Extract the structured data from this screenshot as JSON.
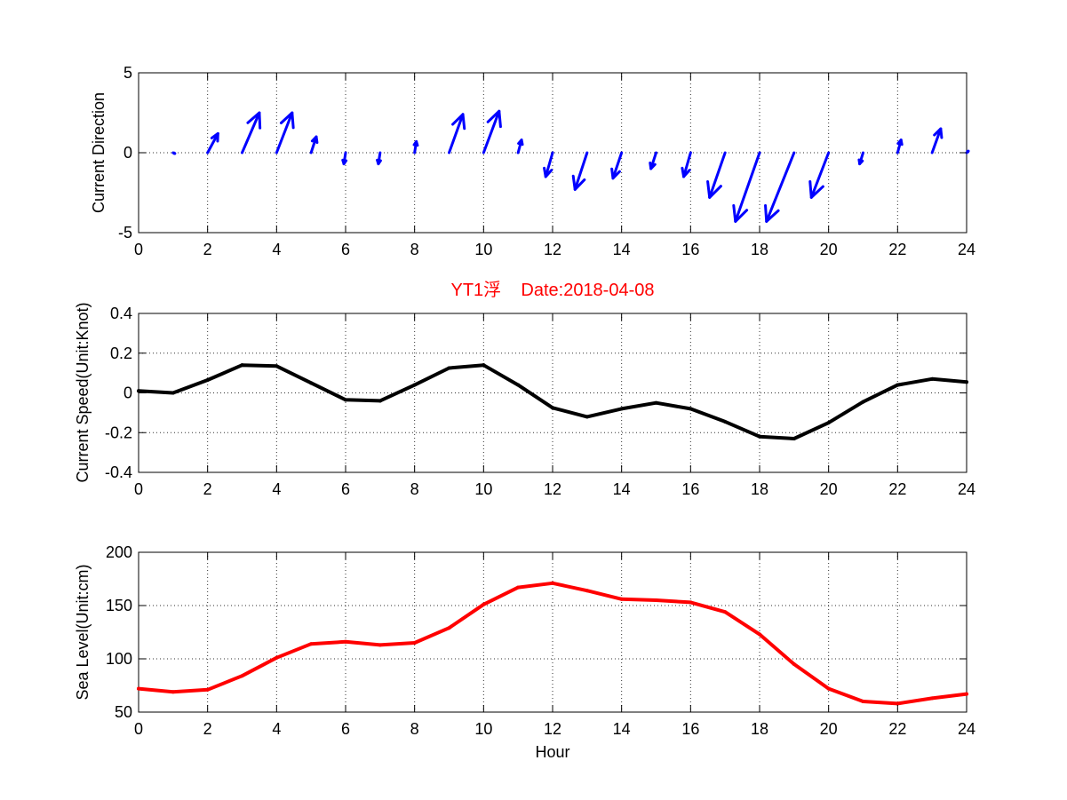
{
  "chart_data": [
    {
      "type": "quiver",
      "title": "",
      "xlabel": "",
      "ylabel": "Current Direction",
      "xlim": [
        0,
        24
      ],
      "ylim": [
        -5,
        5
      ],
      "xticks": [
        "0",
        "2",
        "4",
        "6",
        "8",
        "10",
        "12",
        "14",
        "16",
        "18",
        "20",
        "22",
        "24"
      ],
      "yticks": [
        "5",
        "0",
        "-5"
      ],
      "grid": true,
      "color": "#0000ff",
      "x": [
        1,
        2,
        3,
        4,
        5,
        6,
        7,
        8,
        9,
        10,
        11,
        12,
        13,
        14,
        15,
        16,
        17,
        18,
        19,
        20,
        21,
        22,
        23,
        24
      ],
      "u": [
        0.05,
        0.3,
        0.5,
        0.45,
        0.15,
        -0.05,
        -0.05,
        0.05,
        0.4,
        0.45,
        0.1,
        -0.2,
        -0.35,
        -0.25,
        -0.15,
        -0.2,
        -0.45,
        -0.7,
        -0.8,
        -0.5,
        -0.1,
        0.1,
        0.25,
        0.05
      ],
      "v": [
        -0.05,
        1.2,
        2.5,
        2.5,
        1.0,
        -0.7,
        -0.7,
        0.7,
        2.4,
        2.6,
        0.8,
        -1.5,
        -2.3,
        -1.6,
        -1.0,
        -1.5,
        -2.8,
        -4.3,
        -4.3,
        -2.8,
        -0.7,
        0.8,
        1.5,
        0.1
      ]
    },
    {
      "type": "line",
      "title": "YT1浮    Date:2018-04-08",
      "xlabel": "",
      "ylabel": "Current Speed(Unit:Knot)",
      "xlim": [
        0,
        24
      ],
      "ylim": [
        -0.4,
        0.4
      ],
      "xticks": [
        "0",
        "2",
        "4",
        "6",
        "8",
        "10",
        "12",
        "14",
        "16",
        "18",
        "20",
        "22",
        "24"
      ],
      "yticks": [
        "0.4",
        "0.2",
        "0",
        "-0.2",
        "-0.4"
      ],
      "grid": true,
      "color": "#000000",
      "x": [
        0,
        1,
        2,
        3,
        4,
        5,
        6,
        7,
        8,
        9,
        10,
        11,
        12,
        13,
        14,
        15,
        16,
        17,
        18,
        19,
        20,
        21,
        22,
        23,
        24
      ],
      "y": [
        0.01,
        0.0,
        0.065,
        0.14,
        0.135,
        0.05,
        -0.035,
        -0.04,
        0.04,
        0.125,
        0.14,
        0.04,
        -0.075,
        -0.12,
        -0.08,
        -0.05,
        -0.08,
        -0.145,
        -0.22,
        -0.23,
        -0.15,
        -0.045,
        0.04,
        0.07,
        0.055
      ]
    },
    {
      "type": "line",
      "title": "",
      "xlabel": "Hour",
      "ylabel": "Sea Level(Unit:cm)",
      "xlim": [
        0,
        24
      ],
      "ylim": [
        50,
        200
      ],
      "xticks": [
        "0",
        "2",
        "4",
        "6",
        "8",
        "10",
        "12",
        "14",
        "16",
        "18",
        "20",
        "22",
        "24"
      ],
      "yticks": [
        "200",
        "150",
        "100",
        "50"
      ],
      "grid": true,
      "color": "#ff0000",
      "x": [
        0,
        1,
        2,
        3,
        4,
        5,
        6,
        7,
        8,
        9,
        10,
        11,
        12,
        13,
        14,
        15,
        16,
        17,
        18,
        19,
        20,
        21,
        22,
        23,
        24
      ],
      "y": [
        72,
        69,
        71,
        84,
        101,
        114,
        116,
        113,
        115,
        129,
        151,
        167,
        171,
        164,
        156,
        155,
        153,
        144,
        123,
        95,
        72,
        60,
        58,
        63,
        67
      ]
    }
  ]
}
